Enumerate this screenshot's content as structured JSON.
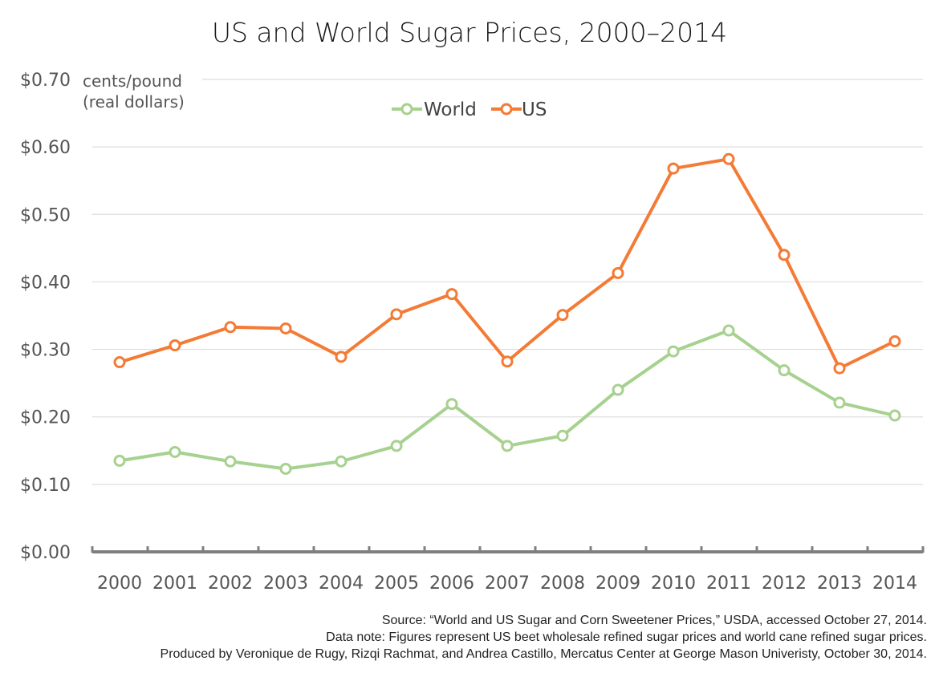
{
  "chart_data": {
    "type": "line",
    "title": "US and World Sugar Prices, 2000–2014",
    "ylabel_lines": [
      "cents/pound",
      "(real dollars)"
    ],
    "x": [
      "2000",
      "2001",
      "2002",
      "2003",
      "2004",
      "2005",
      "2006",
      "2007",
      "2008",
      "2009",
      "2010",
      "2011",
      "2012",
      "2013",
      "2014"
    ],
    "ylim": [
      0,
      0.7
    ],
    "yticks": [
      0.0,
      0.1,
      0.2,
      0.3,
      0.4,
      0.5,
      0.6,
      0.7
    ],
    "ytick_labels": [
      "$0.00",
      "$0.10",
      "$0.20",
      "$0.30",
      "$0.40",
      "$0.50",
      "$0.60",
      "$0.70"
    ],
    "grid": true,
    "legend_position": "top-center",
    "series": [
      {
        "name": "World",
        "color": "#a6d18f",
        "values": [
          0.135,
          0.148,
          0.134,
          0.123,
          0.134,
          0.157,
          0.219,
          0.157,
          0.172,
          0.24,
          0.297,
          0.328,
          0.269,
          0.221,
          0.202
        ]
      },
      {
        "name": "US",
        "color": "#f47b35",
        "values": [
          0.281,
          0.306,
          0.333,
          0.331,
          0.289,
          0.352,
          0.382,
          0.282,
          0.351,
          0.413,
          0.568,
          0.582,
          0.44,
          0.272,
          0.312
        ]
      }
    ]
  },
  "footnotes": [
    "Source: “World and US Sugar and Corn Sweetener Prices,” USDA, accessed October 27, 2014.",
    "Data note: Figures represent US beet wholesale refined sugar prices and world cane refined sugar prices.",
    "Produced by Veronique de Rugy, Rizqi Rachmat, and Andrea Castillo, Mercatus Center at George Mason Univeristy, October 30, 2014."
  ],
  "colors": {
    "grid": "#dddddd",
    "axis": "#7f7f7f"
  }
}
